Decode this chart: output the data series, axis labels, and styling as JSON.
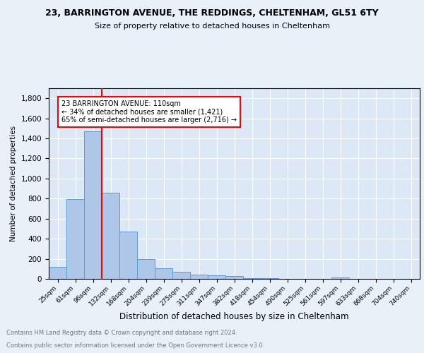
{
  "title1": "23, BARRINGTON AVENUE, THE REDDINGS, CHELTENHAM, GL51 6TY",
  "title2": "Size of property relative to detached houses in Cheltenham",
  "xlabel": "Distribution of detached houses by size in Cheltenham",
  "ylabel": "Number of detached properties",
  "categories": [
    "25sqm",
    "61sqm",
    "96sqm",
    "132sqm",
    "168sqm",
    "204sqm",
    "239sqm",
    "275sqm",
    "311sqm",
    "347sqm",
    "382sqm",
    "418sqm",
    "454sqm",
    "490sqm",
    "525sqm",
    "561sqm",
    "597sqm",
    "633sqm",
    "668sqm",
    "704sqm",
    "740sqm"
  ],
  "values": [
    120,
    795,
    1470,
    860,
    475,
    200,
    105,
    68,
    45,
    32,
    25,
    10,
    5,
    3,
    2,
    2,
    15,
    0,
    0,
    0,
    0
  ],
  "bar_color": "#aec6e8",
  "bar_edge_color": "#5b9bd5",
  "annotation_text": "23 BARRINGTON AVENUE: 110sqm\n← 34% of detached houses are smaller (1,421)\n65% of semi-detached houses are larger (2,716) →",
  "annotation_box_color": "white",
  "annotation_box_edge": "red",
  "vline_color": "red",
  "vline_x_index": 2.5,
  "footer1": "Contains HM Land Registry data © Crown copyright and database right 2024.",
  "footer2": "Contains public sector information licensed under the Open Government Licence v3.0.",
  "background_color": "#e8f0f8",
  "plot_bg_color": "#dce8f5",
  "ylim": [
    0,
    1900
  ],
  "yticks": [
    0,
    200,
    400,
    600,
    800,
    1000,
    1200,
    1400,
    1600,
    1800
  ]
}
